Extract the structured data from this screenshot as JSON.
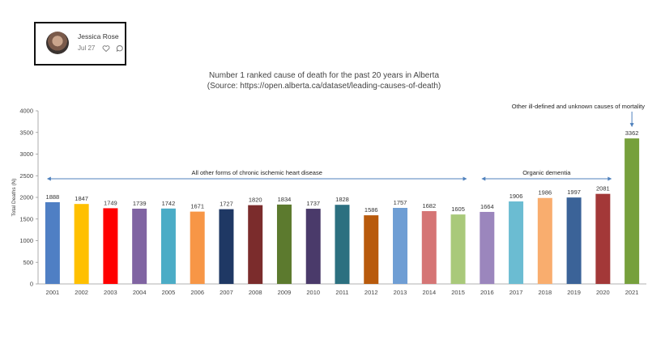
{
  "post": {
    "author_name": "Jessica Rose",
    "date": "Jul 27",
    "icons": [
      "heart-icon",
      "comment-icon"
    ]
  },
  "chart_data": {
    "type": "bar",
    "title_line1": "Number 1 ranked cause of death for the past 20 years in Alberta",
    "title_line2": "(Source: https://open.alberta.ca/dataset/leading-causes-of-death)",
    "ylabel": "Total Deaths (N)",
    "xlabel": "",
    "ylim": [
      0,
      4000
    ],
    "yticks": [
      0,
      500,
      1000,
      1500,
      2000,
      2500,
      3000,
      3500,
      4000
    ],
    "grid": false,
    "categories": [
      "2001",
      "2002",
      "2003",
      "2004",
      "2005",
      "2006",
      "2007",
      "2008",
      "2009",
      "2010",
      "2011",
      "2012",
      "2013",
      "2014",
      "2015",
      "2016",
      "2017",
      "2018",
      "2019",
      "2020",
      "2021"
    ],
    "values": [
      1888,
      1847,
      1749,
      1739,
      1742,
      1671,
      1727,
      1820,
      1834,
      1737,
      1828,
      1586,
      1757,
      1682,
      1605,
      1664,
      1906,
      1986,
      1997,
      2081,
      3362
    ],
    "colors": [
      "#4f7fc4",
      "#ffc000",
      "#ff0000",
      "#8064a2",
      "#4bacc6",
      "#f79646",
      "#1f3864",
      "#7b2c2c",
      "#5c7a2e",
      "#4a3a6a",
      "#2c7080",
      "#b85a0c",
      "#6f9ed4",
      "#d57575",
      "#a9c97a",
      "#9b86bd",
      "#6bbcd2",
      "#f9ad6e",
      "#3b6398",
      "#a33838",
      "#76a03c"
    ],
    "annotations": [
      {
        "text": "All other forms of chronic ischemic heart disease",
        "from": "2001",
        "to": "2015"
      },
      {
        "text": "Organic dementia",
        "from": "2016",
        "to": "2020"
      },
      {
        "text": "Other ill-defined and unknown causes of mortality",
        "target": "2021"
      }
    ],
    "annotation_color": "#4f81bd"
  }
}
